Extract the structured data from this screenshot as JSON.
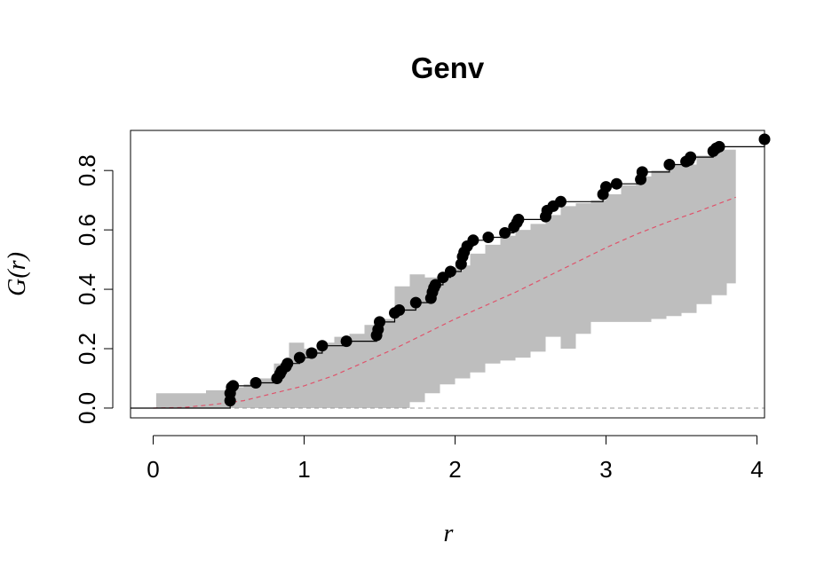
{
  "chart_data": {
    "type": "line",
    "title": "Genv",
    "xlabel": "r",
    "ylabel": "G(r)",
    "xlim": [
      -0.15,
      4.05
    ],
    "ylim": [
      -0.033,
      0.935
    ],
    "xticks": [
      "0",
      "1",
      "2",
      "3",
      "4"
    ],
    "yticks": [
      "0.0",
      "0.2",
      "0.4",
      "0.6",
      "0.8"
    ],
    "grid": false,
    "legend": "none",
    "colors": {
      "envelope": "#bebebe",
      "observed": "#000000",
      "theoretical": "#df536b",
      "reference": "#9a9a9a"
    },
    "envelope": {
      "r": [
        0.02,
        0.2,
        0.35,
        0.5,
        0.6,
        0.7,
        0.8,
        0.9,
        1.0,
        1.1,
        1.2,
        1.3,
        1.4,
        1.5,
        1.6,
        1.7,
        1.8,
        1.9,
        2.0,
        2.1,
        2.2,
        2.3,
        2.4,
        2.5,
        2.6,
        2.7,
        2.8,
        2.9,
        3.0,
        3.1,
        3.2,
        3.3,
        3.4,
        3.5,
        3.6,
        3.7,
        3.8,
        3.86
      ],
      "hi": [
        0.05,
        0.05,
        0.06,
        0.07,
        0.08,
        0.1,
        0.15,
        0.22,
        0.2,
        0.22,
        0.24,
        0.25,
        0.28,
        0.3,
        0.41,
        0.45,
        0.44,
        0.45,
        0.48,
        0.52,
        0.55,
        0.58,
        0.6,
        0.62,
        0.65,
        0.68,
        0.69,
        0.7,
        0.72,
        0.75,
        0.78,
        0.8,
        0.82,
        0.82,
        0.85,
        0.87,
        0.87,
        0.87
      ],
      "lo": [
        0.0,
        0.0,
        0.0,
        0.0,
        0.0,
        0.0,
        0.0,
        0.0,
        0.0,
        0.0,
        0.0,
        0.0,
        0.0,
        0.0,
        0.0,
        0.02,
        0.05,
        0.08,
        0.1,
        0.12,
        0.15,
        0.16,
        0.17,
        0.19,
        0.24,
        0.2,
        0.25,
        0.29,
        0.29,
        0.29,
        0.29,
        0.3,
        0.31,
        0.32,
        0.35,
        0.38,
        0.42,
        0.42
      ]
    },
    "series": [
      {
        "role": "observed",
        "x": [
          0.51,
          0.51,
          0.52,
          0.53,
          0.68,
          0.82,
          0.84,
          0.85,
          0.88,
          0.89,
          0.97,
          1.05,
          1.12,
          1.28,
          1.48,
          1.49,
          1.5,
          1.6,
          1.63,
          1.74,
          1.84,
          1.85,
          1.86,
          1.87,
          1.92,
          1.97,
          2.04,
          2.05,
          2.06,
          2.08,
          2.12,
          2.22,
          2.33,
          2.39,
          2.41,
          2.42,
          2.6,
          2.61,
          2.65,
          2.7,
          2.98,
          3.0,
          3.07,
          3.23,
          3.24,
          3.42,
          3.53,
          3.55,
          3.56,
          3.71,
          3.73,
          3.75,
          4.05
        ],
        "y": [
          0.025,
          0.05,
          0.07,
          0.075,
          0.085,
          0.1,
          0.115,
          0.125,
          0.14,
          0.15,
          0.17,
          0.185,
          0.21,
          0.225,
          0.245,
          0.265,
          0.29,
          0.32,
          0.33,
          0.355,
          0.37,
          0.39,
          0.405,
          0.415,
          0.44,
          0.46,
          0.485,
          0.51,
          0.525,
          0.545,
          0.565,
          0.575,
          0.59,
          0.61,
          0.625,
          0.635,
          0.645,
          0.665,
          0.68,
          0.695,
          0.72,
          0.745,
          0.755,
          0.77,
          0.795,
          0.82,
          0.83,
          0.835,
          0.845,
          0.865,
          0.875,
          0.88,
          0.905
        ]
      },
      {
        "role": "theoretical",
        "x": [
          0.0,
          0.2,
          0.4,
          0.6,
          0.8,
          1.0,
          1.2,
          1.4,
          1.6,
          1.8,
          2.0,
          2.2,
          2.4,
          2.6,
          2.8,
          3.0,
          3.2,
          3.4,
          3.6,
          3.86
        ],
        "y": [
          0.0,
          0.002,
          0.012,
          0.025,
          0.05,
          0.075,
          0.11,
          0.155,
          0.2,
          0.25,
          0.3,
          0.345,
          0.39,
          0.44,
          0.49,
          0.54,
          0.585,
          0.625,
          0.66,
          0.71
        ]
      },
      {
        "role": "reference",
        "value": 0
      }
    ]
  }
}
